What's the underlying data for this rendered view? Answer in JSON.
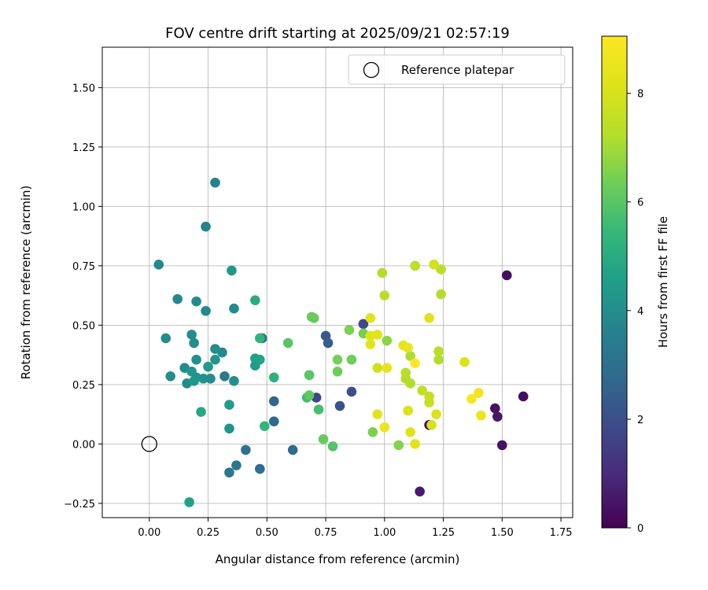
{
  "chart_data": {
    "type": "scatter",
    "title": "FOV centre drift starting at 2025/09/21 02:57:19",
    "xlabel": "Angular distance from reference (arcmin)",
    "ylabel": "Rotation from reference (arcmin)",
    "xlim": [
      -0.2,
      1.8
    ],
    "ylim": [
      -0.31,
      1.67
    ],
    "x_ticks": [
      0.0,
      0.25,
      0.5,
      0.75,
      1.0,
      1.25,
      1.5,
      1.75
    ],
    "x_tick_labels": [
      "0.00",
      "0.25",
      "0.50",
      "0.75",
      "1.00",
      "1.25",
      "1.50",
      "1.75"
    ],
    "y_ticks": [
      -0.25,
      0.0,
      0.25,
      0.5,
      0.75,
      1.0,
      1.25,
      1.5
    ],
    "y_tick_labels": [
      "−0.25",
      "0.00",
      "0.25",
      "0.50",
      "0.75",
      "1.00",
      "1.25",
      "1.50"
    ],
    "grid": true,
    "legend": {
      "position": "top-right",
      "label": "Reference platepar",
      "marker": "open-circle"
    },
    "reference_point": {
      "x": 0.0,
      "y": 0.0
    },
    "colorbar": {
      "label": "Hours from first FF file",
      "colormap": "viridis",
      "range": [
        0,
        9.05
      ],
      "ticks": [
        0,
        2,
        4,
        6,
        8
      ],
      "tick_labels": [
        "0",
        "2",
        "4",
        "6",
        "8"
      ]
    },
    "points": [
      {
        "x": 1.52,
        "y": 0.71,
        "h": 0.3
      },
      {
        "x": 1.59,
        "y": 0.2,
        "h": 0.3
      },
      {
        "x": 1.47,
        "y": 0.15,
        "h": 0.4
      },
      {
        "x": 1.48,
        "y": 0.115,
        "h": 0.5
      },
      {
        "x": 1.5,
        "y": -0.005,
        "h": 0.4
      },
      {
        "x": 1.19,
        "y": 0.08,
        "h": 0.2
      },
      {
        "x": 1.15,
        "y": -0.2,
        "h": 0.6
      },
      {
        "x": 0.91,
        "y": 0.505,
        "h": 1.8
      },
      {
        "x": 0.71,
        "y": 0.195,
        "h": 1.7
      },
      {
        "x": 0.86,
        "y": 0.22,
        "h": 2.0
      },
      {
        "x": 0.81,
        "y": 0.16,
        "h": 2.1
      },
      {
        "x": 0.75,
        "y": 0.455,
        "h": 2.3
      },
      {
        "x": 0.76,
        "y": 0.425,
        "h": 2.4
      },
      {
        "x": 0.53,
        "y": 0.18,
        "h": 2.7
      },
      {
        "x": 0.53,
        "y": 0.095,
        "h": 2.8
      },
      {
        "x": 0.61,
        "y": -0.025,
        "h": 2.8
      },
      {
        "x": 0.41,
        "y": -0.025,
        "h": 3.0
      },
      {
        "x": 0.47,
        "y": -0.105,
        "h": 3.0
      },
      {
        "x": 0.37,
        "y": -0.09,
        "h": 3.2
      },
      {
        "x": 0.34,
        "y": -0.12,
        "h": 3.3
      },
      {
        "x": 0.48,
        "y": 0.445,
        "h": 3.1
      },
      {
        "x": 0.32,
        "y": 0.285,
        "h": 3.3
      },
      {
        "x": 0.28,
        "y": 1.1,
        "h": 3.6
      },
      {
        "x": 0.24,
        "y": 0.915,
        "h": 3.7
      },
      {
        "x": 0.04,
        "y": 0.755,
        "h": 3.8
      },
      {
        "x": 0.12,
        "y": 0.61,
        "h": 3.8
      },
      {
        "x": 0.2,
        "y": 0.6,
        "h": 3.9
      },
      {
        "x": 0.24,
        "y": 0.56,
        "h": 3.8
      },
      {
        "x": 0.36,
        "y": 0.57,
        "h": 3.9
      },
      {
        "x": 0.07,
        "y": 0.445,
        "h": 3.9
      },
      {
        "x": 0.09,
        "y": 0.285,
        "h": 4.0
      },
      {
        "x": 0.15,
        "y": 0.32,
        "h": 3.9
      },
      {
        "x": 0.16,
        "y": 0.255,
        "h": 3.9
      },
      {
        "x": 0.18,
        "y": 0.46,
        "h": 4.0
      },
      {
        "x": 0.19,
        "y": 0.425,
        "h": 4.0
      },
      {
        "x": 0.28,
        "y": 0.4,
        "h": 4.0
      },
      {
        "x": 0.31,
        "y": 0.385,
        "h": 3.9
      },
      {
        "x": 0.2,
        "y": 0.355,
        "h": 4.1
      },
      {
        "x": 0.2,
        "y": 0.28,
        "h": 4.1
      },
      {
        "x": 0.23,
        "y": 0.275,
        "h": 4.2
      },
      {
        "x": 0.26,
        "y": 0.275,
        "h": 4.0
      },
      {
        "x": 0.36,
        "y": 0.265,
        "h": 4.0
      },
      {
        "x": 0.28,
        "y": 0.355,
        "h": 4.2
      },
      {
        "x": 0.18,
        "y": 0.305,
        "h": 4.3
      },
      {
        "x": 0.19,
        "y": 0.265,
        "h": 4.3
      },
      {
        "x": 0.35,
        "y": 0.73,
        "h": 4.3
      },
      {
        "x": 0.34,
        "y": 0.065,
        "h": 4.2
      },
      {
        "x": 0.17,
        "y": -0.245,
        "h": 4.6
      },
      {
        "x": 0.25,
        "y": 0.325,
        "h": 4.4
      },
      {
        "x": 0.34,
        "y": 0.165,
        "h": 4.5
      },
      {
        "x": 0.22,
        "y": 0.135,
        "h": 4.9
      },
      {
        "x": 0.45,
        "y": 0.36,
        "h": 4.6
      },
      {
        "x": 0.45,
        "y": 0.33,
        "h": 4.5
      },
      {
        "x": 0.47,
        "y": 0.355,
        "h": 4.7
      },
      {
        "x": 0.45,
        "y": 0.605,
        "h": 5.0
      },
      {
        "x": 0.47,
        "y": 0.445,
        "h": 5.3
      },
      {
        "x": 0.53,
        "y": 0.28,
        "h": 5.2
      },
      {
        "x": 0.49,
        "y": 0.075,
        "h": 5.4
      },
      {
        "x": 0.68,
        "y": 0.29,
        "h": 5.5
      },
      {
        "x": 0.67,
        "y": 0.195,
        "h": 5.6
      },
      {
        "x": 0.72,
        "y": 0.145,
        "h": 5.7
      },
      {
        "x": 0.74,
        "y": 0.02,
        "h": 6.2
      },
      {
        "x": 0.78,
        "y": -0.01,
        "h": 5.9
      },
      {
        "x": 0.59,
        "y": 0.425,
        "h": 6.0
      },
      {
        "x": 0.68,
        "y": 0.205,
        "h": 6.1
      },
      {
        "x": 0.69,
        "y": 0.535,
        "h": 6.3
      },
      {
        "x": 0.7,
        "y": 0.53,
        "h": 6.2
      },
      {
        "x": 0.68,
        "y": 0.29,
        "h": 6.0
      },
      {
        "x": 0.8,
        "y": 0.305,
        "h": 6.3
      },
      {
        "x": 0.8,
        "y": 0.355,
        "h": 6.4
      },
      {
        "x": 0.86,
        "y": 0.355,
        "h": 6.3
      },
      {
        "x": 0.85,
        "y": 0.48,
        "h": 6.5
      },
      {
        "x": 0.91,
        "y": 0.465,
        "h": 6.4
      },
      {
        "x": 0.95,
        "y": 0.05,
        "h": 6.5
      },
      {
        "x": 1.06,
        "y": -0.005,
        "h": 6.6
      },
      {
        "x": 1.01,
        "y": 0.435,
        "h": 6.7
      },
      {
        "x": 0.99,
        "y": 0.72,
        "h": 7.2
      },
      {
        "x": 1.0,
        "y": 0.625,
        "h": 7.3
      },
      {
        "x": 1.13,
        "y": 0.75,
        "h": 7.4
      },
      {
        "x": 1.24,
        "y": 0.735,
        "h": 7.3
      },
      {
        "x": 1.24,
        "y": 0.63,
        "h": 7.2
      },
      {
        "x": 1.11,
        "y": 0.37,
        "h": 7.1
      },
      {
        "x": 1.11,
        "y": 0.255,
        "h": 7.2
      },
      {
        "x": 1.09,
        "y": 0.275,
        "h": 7.2
      },
      {
        "x": 1.09,
        "y": 0.3,
        "h": 7.3
      },
      {
        "x": 1.23,
        "y": 0.39,
        "h": 7.3
      },
      {
        "x": 1.23,
        "y": 0.355,
        "h": 7.2
      },
      {
        "x": 1.16,
        "y": 0.225,
        "h": 7.5
      },
      {
        "x": 1.19,
        "y": 0.2,
        "h": 7.6
      },
      {
        "x": 1.19,
        "y": 0.175,
        "h": 7.6
      },
      {
        "x": 1.21,
        "y": 0.755,
        "h": 7.9
      },
      {
        "x": 1.19,
        "y": 0.53,
        "h": 8.2
      },
      {
        "x": 0.94,
        "y": 0.53,
        "h": 8.3
      },
      {
        "x": 0.94,
        "y": 0.455,
        "h": 8.3
      },
      {
        "x": 0.94,
        "y": 0.42,
        "h": 8.3
      },
      {
        "x": 0.97,
        "y": 0.32,
        "h": 7.8
      },
      {
        "x": 0.97,
        "y": 0.46,
        "h": 8.3
      },
      {
        "x": 1.01,
        "y": 0.32,
        "h": 8.4
      },
      {
        "x": 1.08,
        "y": 0.415,
        "h": 8.4
      },
      {
        "x": 1.1,
        "y": 0.405,
        "h": 8.5
      },
      {
        "x": 1.1,
        "y": 0.14,
        "h": 8.1
      },
      {
        "x": 1.11,
        "y": 0.05,
        "h": 8.2
      },
      {
        "x": 1.13,
        "y": 0.0,
        "h": 8.3
      },
      {
        "x": 1.2,
        "y": 0.08,
        "h": 8.0
      },
      {
        "x": 1.22,
        "y": 0.125,
        "h": 8.1
      },
      {
        "x": 0.97,
        "y": 0.125,
        "h": 8.3
      },
      {
        "x": 1.0,
        "y": 0.07,
        "h": 8.5
      },
      {
        "x": 1.34,
        "y": 0.345,
        "h": 8.1
      },
      {
        "x": 1.37,
        "y": 0.19,
        "h": 8.9
      },
      {
        "x": 1.4,
        "y": 0.215,
        "h": 8.7
      },
      {
        "x": 1.41,
        "y": 0.12,
        "h": 8.5
      },
      {
        "x": 1.13,
        "y": 0.34,
        "h": 9.05
      }
    ]
  }
}
